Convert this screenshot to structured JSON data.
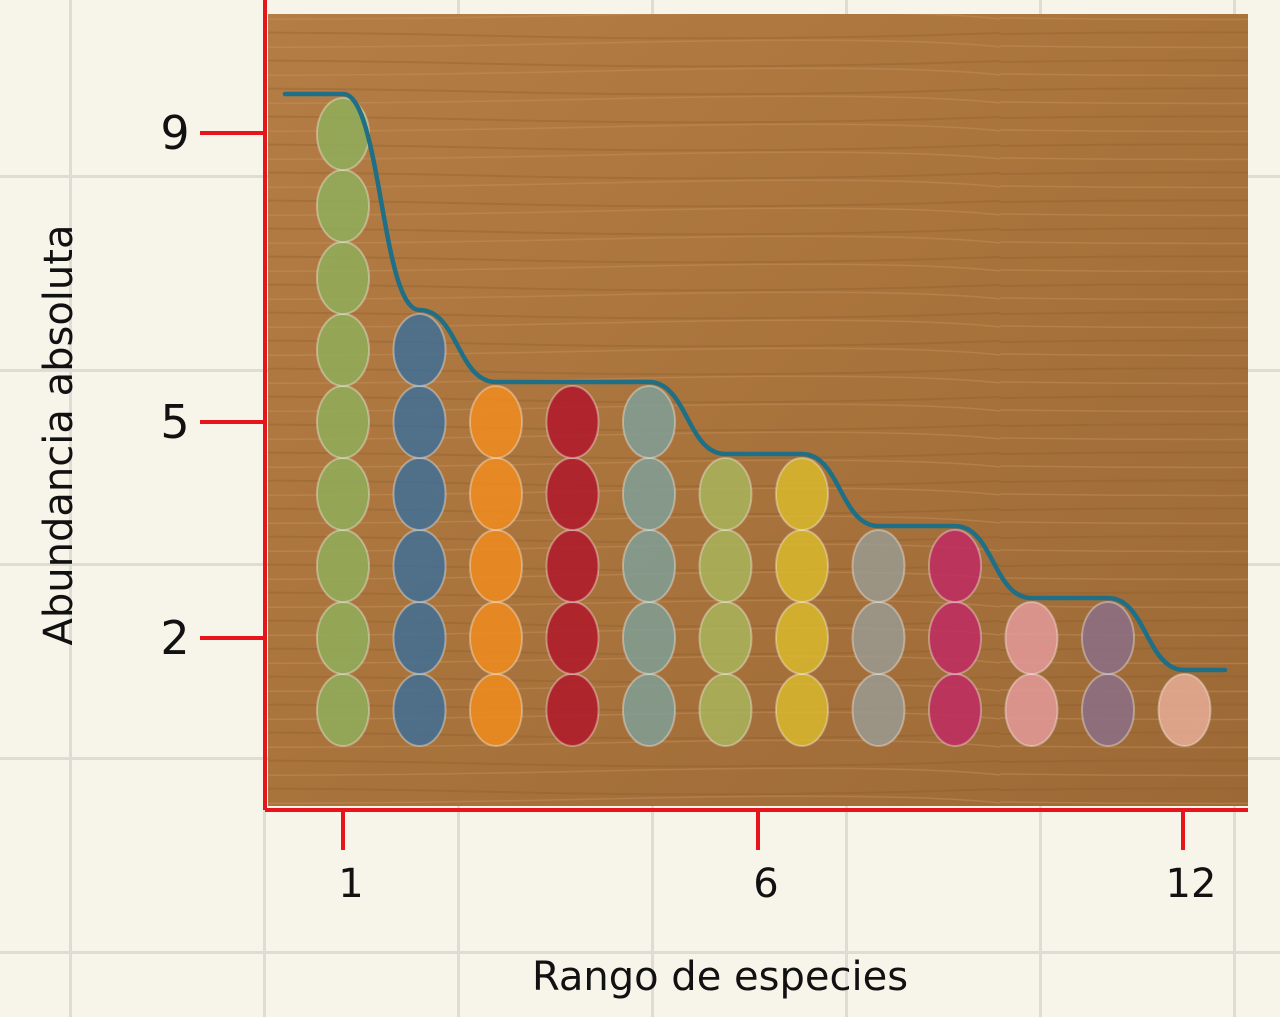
{
  "chart_data": {
    "type": "bar",
    "title": "",
    "xlabel": "Rango de especies",
    "ylabel": "Abundancia absoluta",
    "x": [
      1,
      2,
      3,
      4,
      5,
      6,
      7,
      8,
      9,
      10,
      11,
      12
    ],
    "x_ticks": [
      "1",
      "6",
      "12"
    ],
    "y_ticks": [
      "9",
      "5",
      "2"
    ],
    "series": [
      {
        "name": "abundancia",
        "values": [
          9,
          6,
          5,
          5,
          5,
          4,
          4,
          3,
          3,
          2,
          2,
          1
        ]
      }
    ],
    "counter_colors": [
      "#8fae5a",
      "#3f6e96",
      "#f08c1e",
      "#b0182a",
      "#7f9f96",
      "#a8b45c",
      "#d9b82e",
      "#9a9a90",
      "#c02a62",
      "#e49a9a",
      "#8a6e86",
      "#e6ad96"
    ],
    "trend_line": "#1f6f86",
    "axis_color": "#e8141c",
    "board_color": "#b07a42",
    "grid": true,
    "ylim": [
      0,
      10
    ]
  }
}
